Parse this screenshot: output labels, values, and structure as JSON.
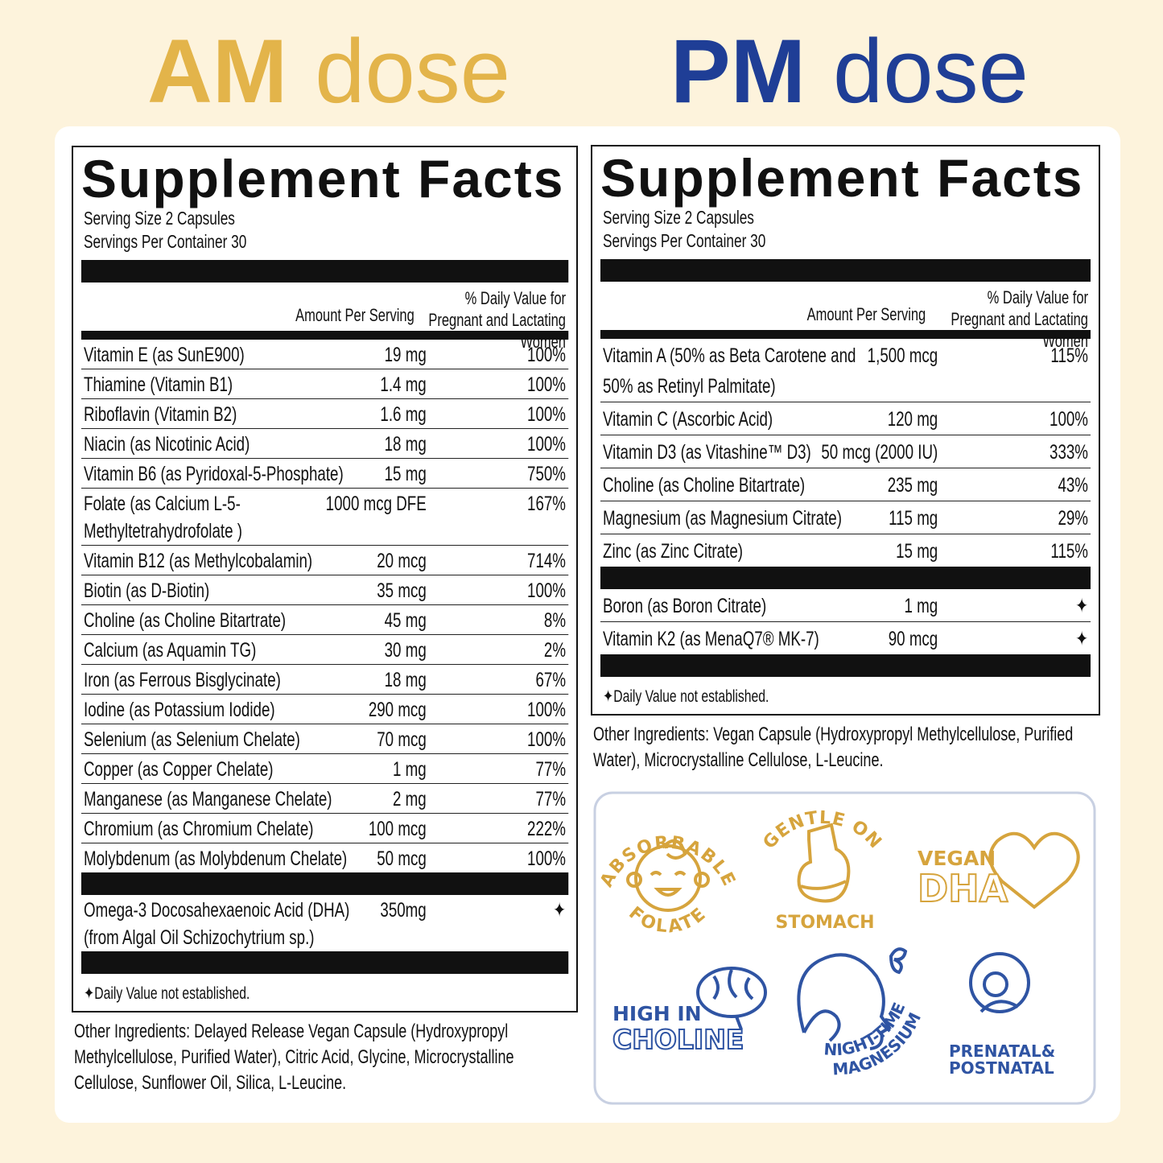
{
  "am": {
    "heading_bold": "AM",
    "heading_light": "dose",
    "facts": {
      "heading": "Supplement Facts",
      "serving_size": "Serving Size 2 Capsules",
      "servings_per_container": "Servings Per Container 30",
      "amount_header": "Amount Per Serving",
      "dv_header": "% Daily Value for Pregnant and Lactating Women",
      "nutrients": [
        [
          "Vitamin E (as SunE900)",
          "19 mg",
          "100%"
        ],
        [
          "Thiamine (Vitamin B1)",
          "1.4 mg",
          "100%"
        ],
        [
          "Riboflavin (Vitamin B2)",
          "1.6 mg",
          "100%"
        ],
        [
          "Niacin (as Nicotinic Acid)",
          "18 mg",
          "100%"
        ],
        [
          "Vitamin B6 (as Pyridoxal-5-Phosphate)",
          "15 mg",
          "750%"
        ],
        [
          "Folate (as Calcium L-5-Methyltetrahydrofolate )",
          "1000 mcg DFE",
          "167%"
        ],
        [
          "Vitamin B12 (as Methylcobalamin)",
          "20 mcg",
          "714%"
        ],
        [
          "Biotin (as D-Biotin)",
          "35 mcg",
          "100%"
        ],
        [
          "Choline (as Choline Bitartrate)",
          "45 mg",
          "8%"
        ],
        [
          "Calcium (as Aquamin TG)",
          "30 mg",
          "2%"
        ],
        [
          "Iron (as Ferrous Bisglycinate)",
          "18 mg",
          "67%"
        ],
        [
          "Iodine (as Potassium Iodide)",
          "290 mcg",
          "100%"
        ],
        [
          "Selenium (as Selenium Chelate)",
          "70 mcg",
          "100%"
        ],
        [
          "Copper (as Copper Chelate)",
          "1 mg",
          "77%"
        ],
        [
          "Manganese (as Manganese Chelate)",
          "2 mg",
          "77%"
        ],
        [
          "Chromium (as Chromium Chelate)",
          "100 mcg",
          "222%"
        ],
        [
          "Molybdenum (as Molybdenum Chelate)",
          "50 mcg",
          "100%"
        ]
      ],
      "other_nutrients": [
        [
          "Omega-3 Docosahexaenoic Acid (DHA) (from Algal Oil Schizochytrium sp.)",
          "350mg",
          "✦"
        ]
      ],
      "footnote": "✦Daily Value not established."
    },
    "other_ingredients": "Other Ingredients: Delayed Release Vegan Capsule (Hydroxypropyl Methylcellulose, Purified Water), Citric Acid, Glycine, Microcrystalline Cellulose, Sunflower Oil, Silica, L-Leucine."
  },
  "pm": {
    "heading_bold": "PM",
    "heading_light": "dose",
    "facts": {
      "heading": "Supplement Facts",
      "serving_size": "Serving Size 2 Capsules",
      "servings_per_container": "Servings Per Container 30",
      "amount_header": "Amount Per Serving",
      "dv_header": "% Daily Value for Pregnant and Lactating Women",
      "nutrients": [
        [
          "Vitamin A (50% as Beta Carotene and 50% as Retinyl Palmitate)",
          "1,500 mcg",
          "115%"
        ],
        [
          "Vitamin C (Ascorbic Acid)",
          "120 mg",
          "100%"
        ],
        [
          "Vitamin D3 (as Vitashine™ D3)",
          "50 mcg (2000 IU)",
          "333%"
        ],
        [
          "Choline (as Choline Bitartrate)",
          "235 mg",
          "43%"
        ],
        [
          "Magnesium (as Magnesium Citrate)",
          "115 mg",
          "29%"
        ],
        [
          "Zinc (as Zinc Citrate)",
          "15 mg",
          "115%"
        ]
      ],
      "other_nutrients": [
        [
          "Boron (as Boron Citrate)",
          "1 mg",
          "✦"
        ],
        [
          "Vitamin K2 (as MenaQ7® MK-7)",
          "90 mcg",
          "✦"
        ]
      ],
      "footnote": "✦Daily Value not established."
    },
    "other_ingredients": "Other Ingredients: Vegan Capsule (Hydroxypropyl Methylcellulose, Purified Water), Microcrystalline Cellulose, L-Leucine."
  },
  "badges": [
    [
      "ABSORBABLE",
      "FOLATE"
    ],
    [
      "GENTLE ON",
      "STOMACH"
    ],
    [
      "VEGAN",
      "DHA"
    ],
    [
      "HIGH IN",
      "CHOLINE"
    ],
    [
      "NIGHT-TIME",
      "MAGNESIUM"
    ],
    [
      "PRENATAL&",
      "POSTNATAL"
    ]
  ]
}
